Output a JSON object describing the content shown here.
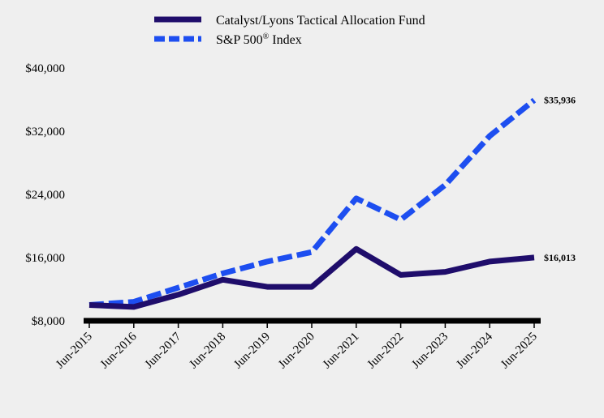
{
  "chart_data": {
    "type": "line",
    "title": "",
    "xlabel": "",
    "ylabel": "",
    "categories": [
      "Jun-2015",
      "Jun-2016",
      "Jun-2017",
      "Jun-2018",
      "Jun-2019",
      "Jun-2020",
      "Jun-2021",
      "Jun-2022",
      "Jun-2023",
      "Jun-2024",
      "Jun-2025"
    ],
    "ylim": [
      8000,
      40000
    ],
    "yticks": [
      8000,
      16000,
      24000,
      32000,
      40000
    ],
    "ytick_labels": [
      "$8,000",
      "$16,000",
      "$24,000",
      "$32,000",
      "$40,000"
    ],
    "grid": false,
    "legend_position": "top-center",
    "series": [
      {
        "name": "Catalyst/Lyons Tactical Allocation Fund",
        "color": "#1f0d6b",
        "style": "solid",
        "values": [
          10000,
          9750,
          11300,
          13200,
          12300,
          12300,
          17100,
          13800,
          14200,
          15500,
          16013
        ],
        "end_label": "$16,013"
      },
      {
        "name": "S&P 500® Index",
        "color": "#1d4ef0",
        "style": "dashed",
        "values": [
          10000,
          10400,
          12200,
          14000,
          15500,
          16700,
          23500,
          20800,
          25200,
          31400,
          35936
        ],
        "end_label": "$35,936"
      }
    ]
  }
}
